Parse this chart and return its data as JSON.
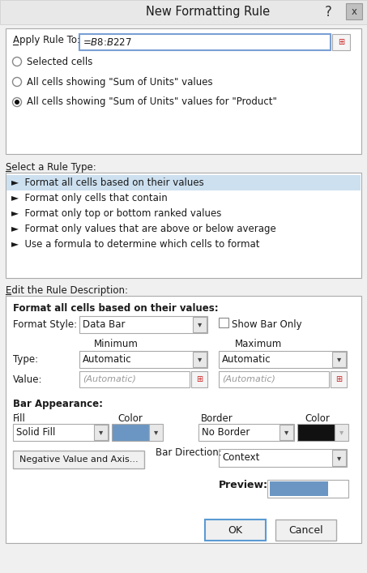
{
  "title": "New Formatting Rule",
  "dialog_bg": "#f0f0f0",
  "title_bg": "#e8e8e8",
  "panel_bg": "#ffffff",
  "apply_rule_to_label": "Apply Rule To:",
  "apply_rule_to_value": "=$B$8:$B$227",
  "radio_options": [
    "Selected cells",
    "All cells showing \"Sum of Units\" values",
    "All cells showing \"Sum of Units\" values for \"Product\""
  ],
  "radio_selected": 2,
  "select_rule_label": "Select a Rule Type:",
  "rule_types": [
    "►  Format all cells based on their values",
    "►  Format only cells that contain",
    "►  Format only top or bottom ranked values",
    "►  Format only values that are above or below average",
    "►  Use a formula to determine which cells to format"
  ],
  "rule_selected": 0,
  "highlight_bg": "#cce0f0",
  "edit_rule_label": "Edit the Rule Description:",
  "format_section_label": "Format all cells based on their values:",
  "format_style_label": "Format Style:",
  "format_style_value": "Data Bar",
  "show_bar_only_label": "Show Bar Only",
  "minimum_label": "Minimum",
  "maximum_label": "Maximum",
  "type_label": "Type:",
  "type_min_value": "Automatic",
  "type_max_value": "Automatic",
  "value_label": "Value:",
  "value_min_value": "(Automatic)",
  "value_max_value": "(Automatic)",
  "bar_appearance_label": "Bar Appearance:",
  "fill_label": "Fill",
  "fill_color_label": "Color",
  "border_label": "Border",
  "border_color_label": "Color",
  "fill_value": "Solid Fill",
  "fill_color": "#6b96c3",
  "border_value": "No Border",
  "border_swatch_color": "#111111",
  "negative_btn_label": "Negative Value and Axis...",
  "bar_direction_label": "Bar Direction:",
  "bar_direction_value": "Context",
  "preview_label": "Preview:",
  "preview_bar_color": "#6b96c3",
  "ok_label": "OK",
  "cancel_label": "Cancel"
}
